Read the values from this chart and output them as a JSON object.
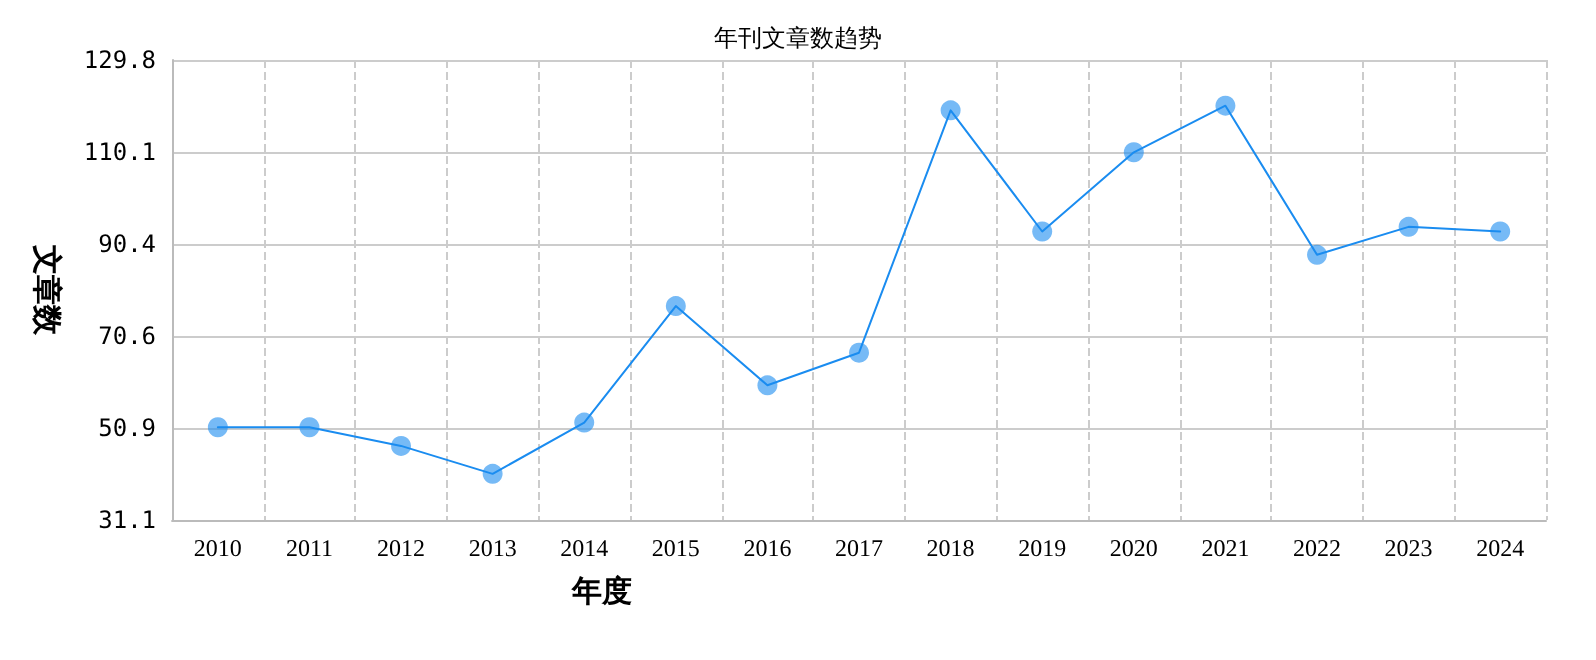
{
  "chart_data": {
    "type": "line",
    "title": "年刊文章数趋势",
    "xlabel": "年度",
    "ylabel": "文章数",
    "categories": [
      "2010",
      "2011",
      "2012",
      "2013",
      "2014",
      "2015",
      "2016",
      "2017",
      "2018",
      "2019",
      "2020",
      "2021",
      "2022",
      "2023",
      "2024"
    ],
    "series": [
      {
        "color": "#1a8cf0",
        "values": [
          51,
          51,
          47,
          41,
          52,
          77,
          60,
          67,
          119,
          93,
          110,
          120,
          88,
          94,
          93
        ]
      }
    ],
    "ylim": [
      31.1,
      129.8
    ],
    "yticks": [
      31.1,
      50.9,
      70.6,
      90.4,
      110.1,
      129.8
    ],
    "grid": true,
    "marker": "circle",
    "line_style": "solid"
  }
}
